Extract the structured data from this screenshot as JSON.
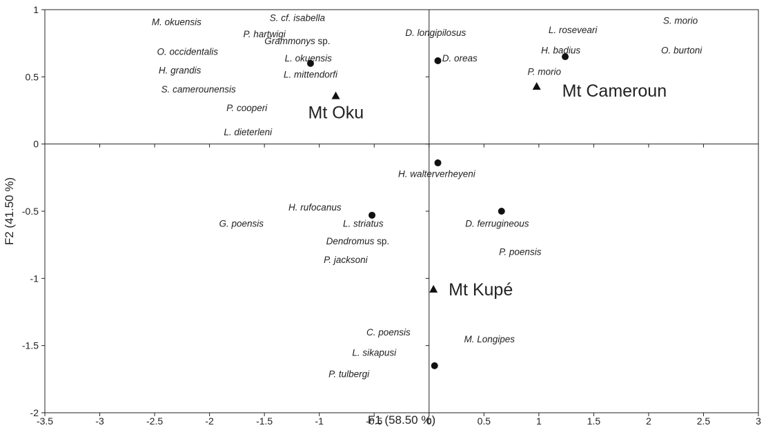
{
  "chart_data": {
    "type": "scatter",
    "xlabel": "F1 (58.50 %)",
    "ylabel": "F2 (41.50 %)",
    "xlim": [
      -3.5,
      3
    ],
    "ylim": [
      -2,
      1
    ],
    "x_ticks": [
      "-3.5",
      "-3",
      "-2.5",
      "-2",
      "-1.5",
      "-1",
      "-0.5",
      "0",
      "0.5",
      "1",
      "1.5",
      "2",
      "2.5",
      "3"
    ],
    "y_ticks": [
      "-2",
      "-1.5",
      "-1",
      "-0.5",
      "0",
      "0.5",
      "1"
    ],
    "grid": false,
    "observations": [
      {
        "x": -1.08,
        "y": 0.6
      },
      {
        "x": 0.08,
        "y": 0.62
      },
      {
        "x": 1.24,
        "y": 0.65
      },
      {
        "x": 0.08,
        "y": -0.14
      },
      {
        "x": -0.52,
        "y": -0.53
      },
      {
        "x": 0.66,
        "y": -0.5
      },
      {
        "x": 0.05,
        "y": -1.65
      }
    ],
    "sites": [
      {
        "label": "Mt Oku",
        "x": -0.85,
        "y": 0.36
      },
      {
        "label": "Mt Cameroun",
        "x": 0.98,
        "y": 0.43
      },
      {
        "label": "Mt Kupé",
        "x": 0.04,
        "y": -1.08
      }
    ],
    "species_labels": [
      {
        "label": "S. cf. isabella",
        "x": -1.2,
        "y": 0.94
      },
      {
        "label": "M. okuensis",
        "x": -2.3,
        "y": 0.91
      },
      {
        "label": "P. hartwigi",
        "x": -1.5,
        "y": 0.82
      },
      {
        "label": "Grammonys",
        "suffix": " sp.",
        "x": -1.2,
        "y": 0.77
      },
      {
        "label": "D. longipilosus",
        "x": 0.06,
        "y": 0.83
      },
      {
        "label": "L. roseveari",
        "x": 1.31,
        "y": 0.85
      },
      {
        "label": "S. morio",
        "x": 2.29,
        "y": 0.92
      },
      {
        "label": "O. occidentalis",
        "x": -2.2,
        "y": 0.69
      },
      {
        "label": "L. okuensis",
        "x": -1.1,
        "y": 0.64
      },
      {
        "label": "D. oreas",
        "x": 0.28,
        "y": 0.64
      },
      {
        "label": "H. badius",
        "x": 1.2,
        "y": 0.7
      },
      {
        "label": "O. burtoni",
        "x": 2.3,
        "y": 0.7
      },
      {
        "label": "H. grandis",
        "x": -2.27,
        "y": 0.55
      },
      {
        "label": "L. mittendorfi",
        "x": -1.08,
        "y": 0.52
      },
      {
        "label": "P. morio",
        "x": 1.05,
        "y": 0.54
      },
      {
        "label": "S. camerounensis",
        "x": -2.1,
        "y": 0.41
      },
      {
        "label": "P. cooperi",
        "x": -1.66,
        "y": 0.27
      },
      {
        "label": "L. dieterleni",
        "x": -1.65,
        "y": 0.09
      },
      {
        "label": "H. walterverheyeni",
        "x": 0.07,
        "y": -0.22
      },
      {
        "label": "H. rufocanus",
        "x": -1.04,
        "y": -0.47
      },
      {
        "label": "G. poensis",
        "x": -1.71,
        "y": -0.59
      },
      {
        "label": "L. striatus",
        "x": -0.6,
        "y": -0.59
      },
      {
        "label": "D. ferrugineous",
        "x": 0.62,
        "y": -0.59
      },
      {
        "label": "Dendromus",
        "suffix": " sp.",
        "x": -0.65,
        "y": -0.72
      },
      {
        "label": "P. poensis",
        "x": 0.83,
        "y": -0.8
      },
      {
        "label": "P. jacksoni",
        "x": -0.76,
        "y": -0.86
      },
      {
        "label": "C. poensis",
        "x": -0.37,
        "y": -1.4
      },
      {
        "label": "M. Longipes",
        "x": 0.55,
        "y": -1.45
      },
      {
        "label": "L. sikapusi",
        "x": -0.5,
        "y": -1.55
      },
      {
        "label": "P. tulbergi",
        "x": -0.73,
        "y": -1.71
      }
    ]
  }
}
